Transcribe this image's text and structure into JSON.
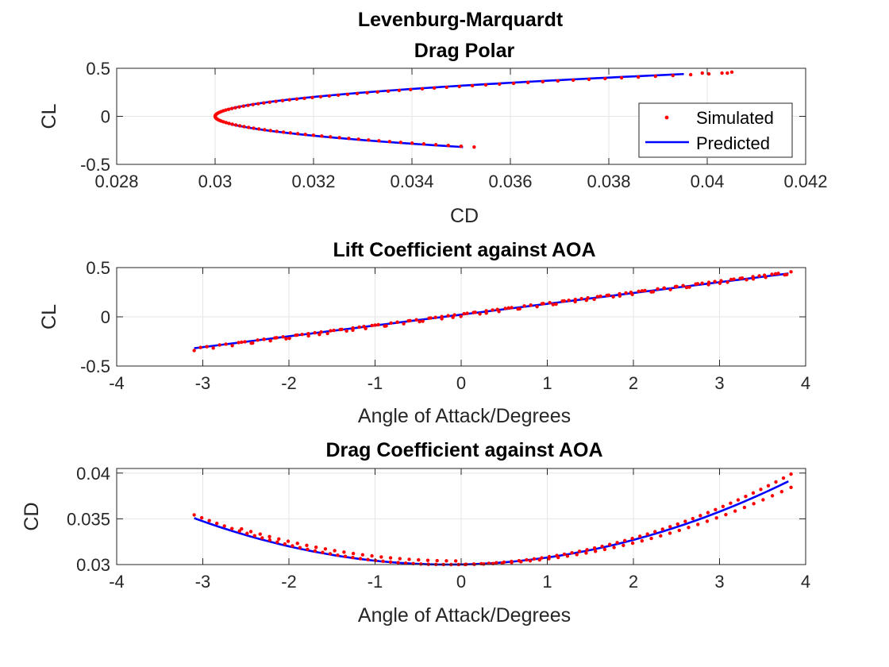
{
  "figure_title": "Levenburg-Marquardt",
  "legend": {
    "location": "northeast",
    "entries": [
      "Simulated",
      "Predicted"
    ]
  },
  "colors": {
    "simulated": "#ff0000",
    "predicted": "#0000ff",
    "grid": "#e6e6e6",
    "axis": "#262626"
  },
  "chart_data": [
    {
      "type": "scatter+line",
      "title": "Drag Polar",
      "xlabel": "CD",
      "ylabel": "CL",
      "xlim": [
        0.028,
        0.042
      ],
      "ylim": [
        -0.5,
        0.5
      ],
      "x_ticks": [
        0.028,
        0.03,
        0.032,
        0.034,
        0.036,
        0.038,
        0.04,
        0.042
      ],
      "x_tick_labels": [
        "0.028",
        "0.03",
        "0.032",
        "0.034",
        "0.036",
        "0.038",
        "0.04",
        "0.042"
      ],
      "y_ticks": [
        -0.5,
        0,
        0.5
      ],
      "y_tick_labels": [
        "-0.5",
        "0",
        "0.5"
      ],
      "grid": true,
      "legend": "top-right",
      "series": [
        {
          "name": "Simulated",
          "style": "dots",
          "relation": "CD = 0.03 + 0.0514*CL^2 (CL from -0.32 to 0.45)",
          "extra_points": [
            [
              0.0399,
              0.45
            ],
            [
              0.0403,
              0.45
            ],
            [
              0.0405,
              0.46
            ]
          ]
        },
        {
          "name": "Predicted",
          "style": "line",
          "relation": "CD = 0.03 + 0.0492*CL^2 (CL from -0.32 to 0.44)"
        }
      ]
    },
    {
      "type": "scatter+line",
      "title": "Lift Coefficient against AOA",
      "xlabel": "Angle of Attack/Degrees",
      "ylabel": "CL",
      "xlim": [
        -4,
        4
      ],
      "ylim": [
        -0.5,
        0.5
      ],
      "x_ticks": [
        -4,
        -3,
        -2,
        -1,
        0,
        1,
        2,
        3,
        4
      ],
      "x_tick_labels": [
        "-4",
        "-3",
        "-2",
        "-1",
        "0",
        "1",
        "2",
        "3",
        "4"
      ],
      "y_ticks": [
        -0.5,
        0,
        0.5
      ],
      "y_tick_labels": [
        "-0.5",
        "0",
        "0.5"
      ],
      "grid": true,
      "series": [
        {
          "name": "Simulated",
          "style": "dots",
          "relation": "CL ≈ 0.02 + 0.112*AOA (AOA from -3.1 to 3.83)"
        },
        {
          "name": "Predicted",
          "style": "line",
          "relation": "CL ≈ 0.022 + 0.11*AOA (AOA from -3.1 to 3.8)"
        }
      ]
    },
    {
      "type": "scatter+line",
      "title": "Drag Coefficient against AOA",
      "xlabel": "Angle of Attack/Degrees",
      "ylabel": "CD",
      "xlim": [
        -4,
        4
      ],
      "ylim": [
        0.03,
        0.0405
      ],
      "x_ticks": [
        -4,
        -3,
        -2,
        -1,
        0,
        1,
        2,
        3,
        4
      ],
      "x_tick_labels": [
        "-4",
        "-3",
        "-2",
        "-1",
        "0",
        "1",
        "2",
        "3",
        "4"
      ],
      "y_ticks": [
        0.03,
        0.035,
        0.04
      ],
      "y_tick_labels": [
        "0.03",
        "0.035",
        "0.04"
      ],
      "grid": true,
      "series": [
        {
          "name": "Simulated",
          "style": "dots",
          "relation": "CD ≈ 0.03 + 0.000624*(AOA+0.15)^2 (AOA from -3.1 to 3.83), lower branch to 0.0395 at 3.83"
        },
        {
          "name": "Predicted",
          "style": "line",
          "relation": "CD ≈ 0.03 + 0.000583*(AOA+0.15)^2 (AOA from -3.1 to 3.8)"
        }
      ]
    }
  ]
}
